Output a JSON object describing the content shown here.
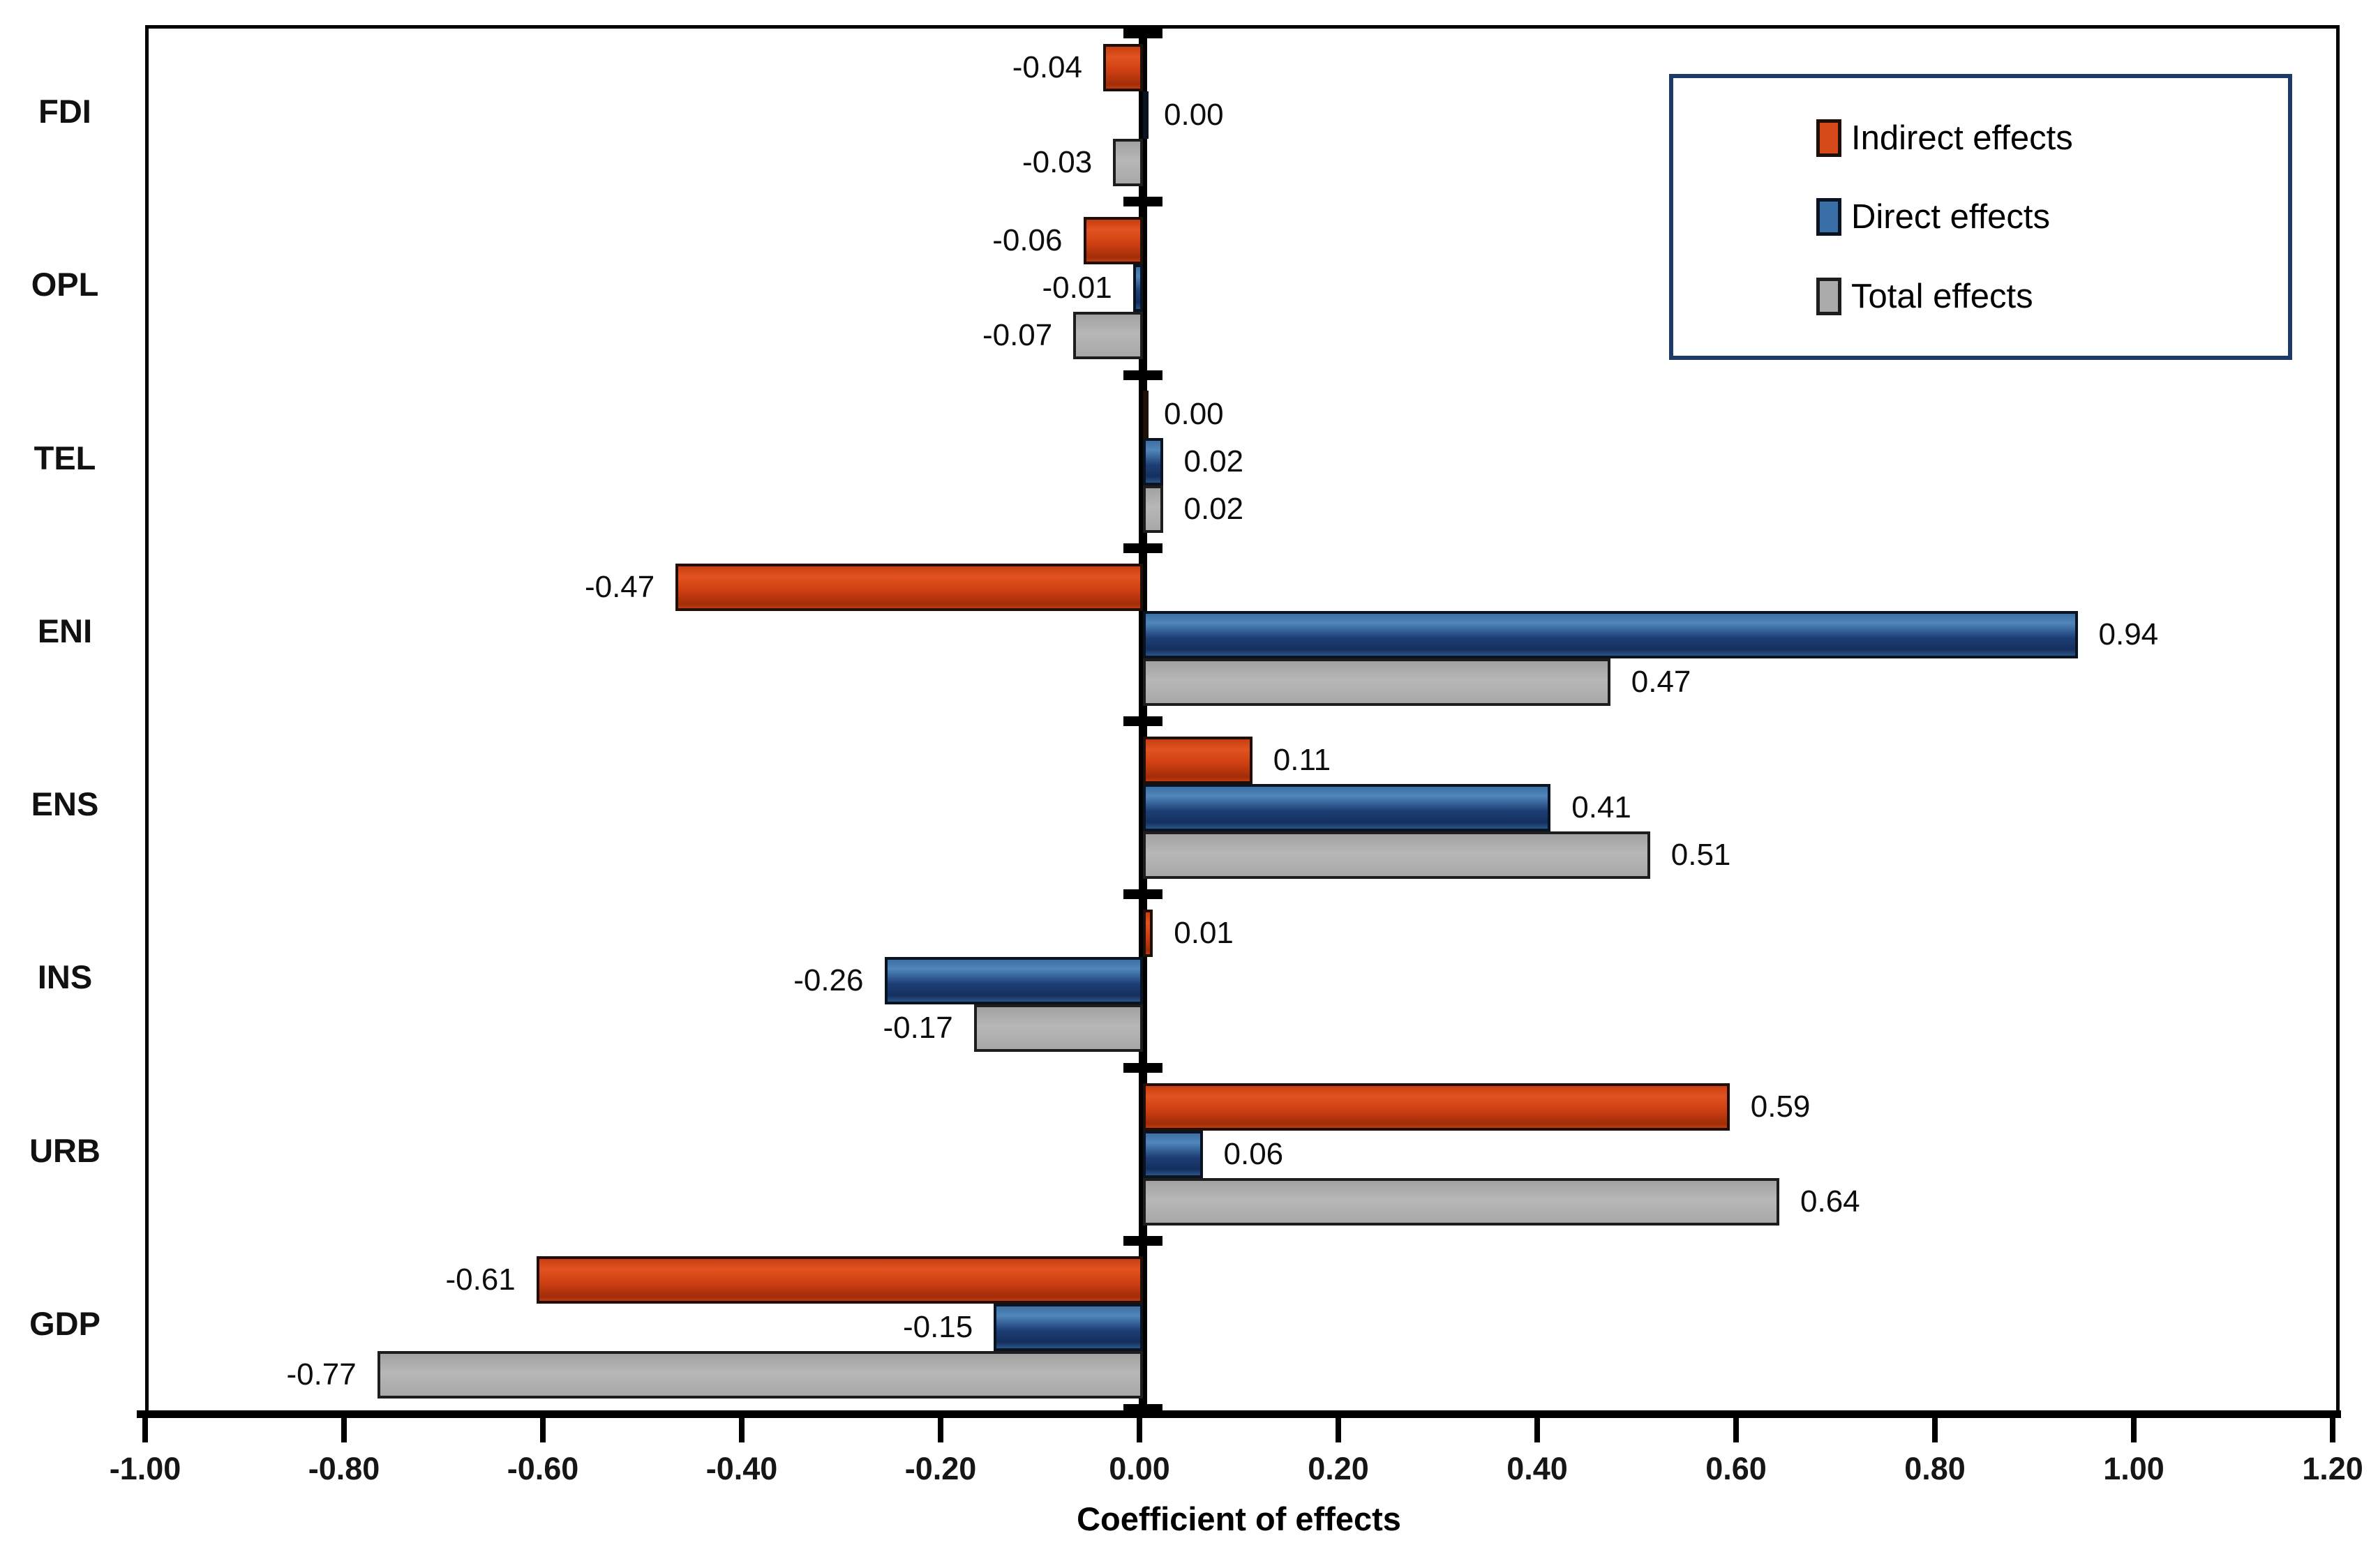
{
  "chart_data": {
    "type": "bar",
    "orientation": "horizontal",
    "title": "",
    "xlabel": "Coefficient of effects",
    "ylabel": "",
    "xlim": [
      -1.0,
      1.2
    ],
    "x_tick_labels": [
      "-1.00",
      "-0.80",
      "-0.60",
      "-0.40",
      "-0.20",
      "0.00",
      "0.20",
      "0.40",
      "0.60",
      "0.80",
      "1.00",
      "1.20"
    ],
    "x_tick_values": [
      -1.0,
      -0.8,
      -0.6,
      -0.4,
      -0.2,
      0.0,
      0.2,
      0.4,
      0.6,
      0.8,
      1.0,
      1.2
    ],
    "categories": [
      "FDI",
      "OPL",
      "TEL",
      "ENI",
      "ENS",
      "INS",
      "URB",
      "GDP"
    ],
    "grid": false,
    "legend_position": "top-right",
    "series": [
      {
        "name": "Indirect effects",
        "color": "#d64a1a",
        "border_color": "#200f07",
        "values": [
          -0.04,
          -0.06,
          0.0,
          -0.47,
          0.11,
          0.01,
          0.59,
          -0.61
        ],
        "labels": [
          "-0.04",
          "-0.06",
          "0.00",
          "-0.47",
          "0.11",
          "0.01",
          "0.59",
          "-0.61"
        ]
      },
      {
        "name": "Direct effects",
        "color": "#3a6ea6",
        "border_color": "#0a1322",
        "values": [
          0.0,
          -0.01,
          0.02,
          0.94,
          0.41,
          -0.26,
          0.06,
          -0.15
        ],
        "labels": [
          "0.00",
          "-0.01",
          "0.02",
          "0.94",
          "0.41",
          "-0.26",
          "0.06",
          "-0.15"
        ]
      },
      {
        "name": "Total effects",
        "color": "#ababab",
        "border_color": "#1d1d1d",
        "values": [
          -0.03,
          -0.07,
          0.02,
          0.47,
          0.51,
          -0.17,
          0.64,
          -0.77
        ],
        "labels": [
          "-0.03",
          "-0.07",
          "0.02",
          "0.47",
          "0.51",
          "-0.17",
          "0.64",
          "-0.77"
        ]
      }
    ],
    "axis_color": "#000000",
    "legend_border_color": "#1d3a68",
    "background_color": "#ffffff"
  }
}
